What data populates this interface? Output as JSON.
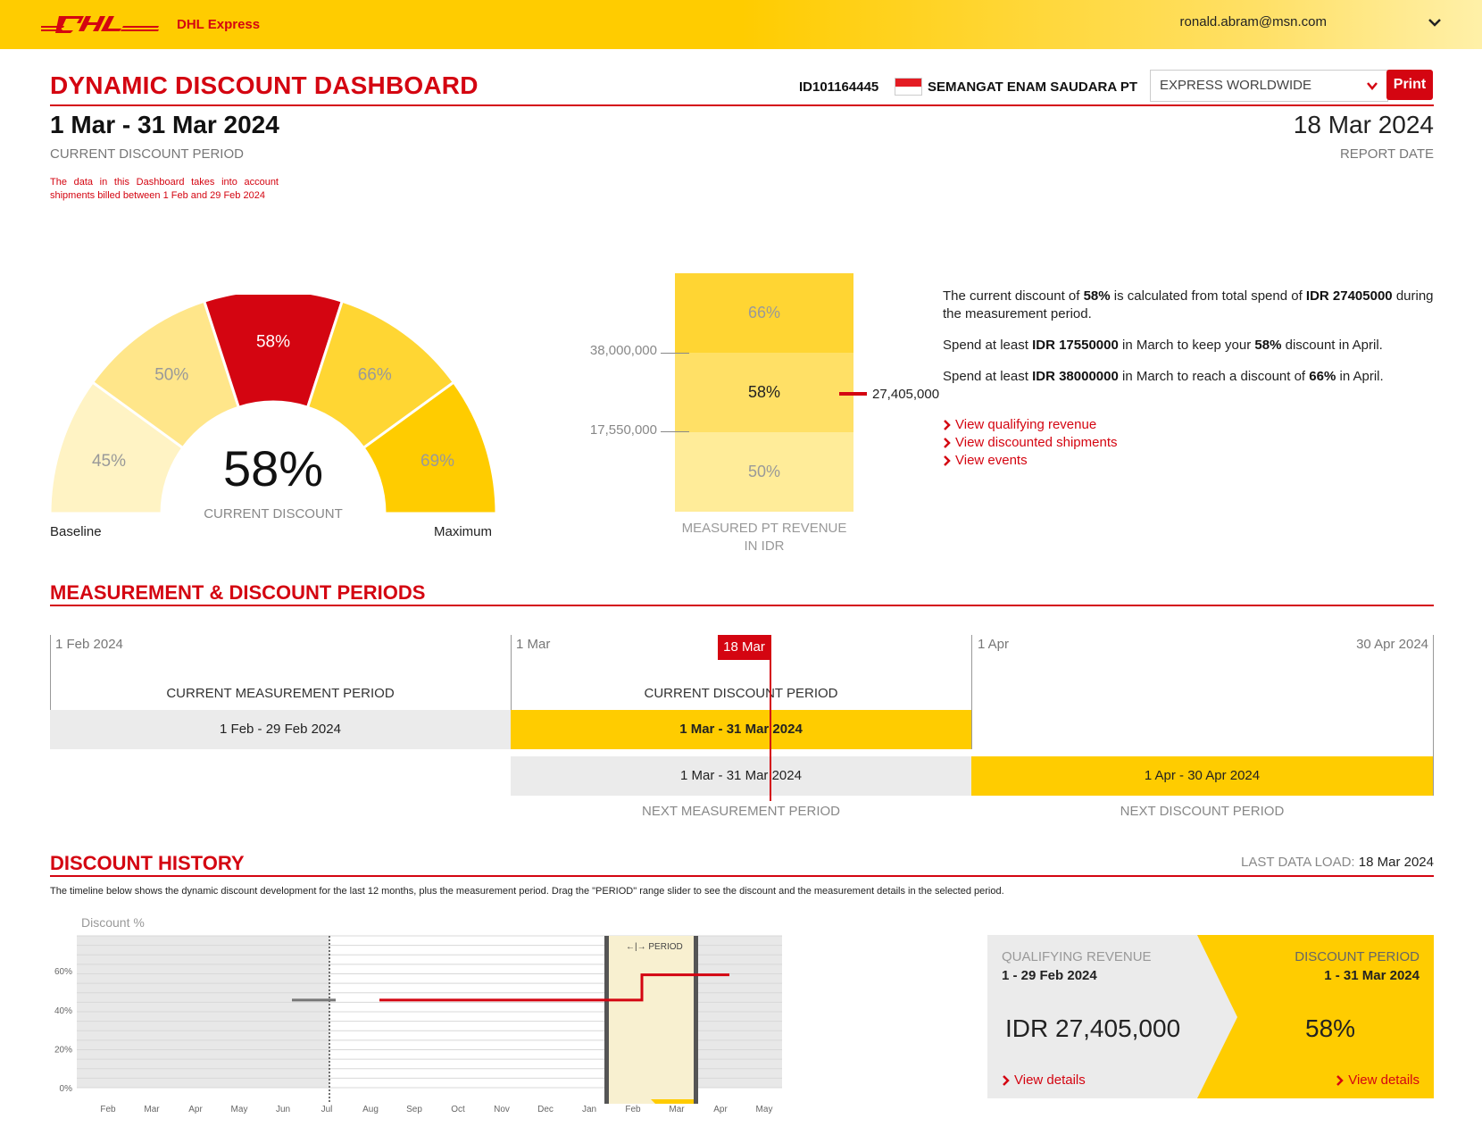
{
  "header": {
    "brand": "DHL Express",
    "user_email": "ronald.abram@msn.com"
  },
  "title": "DYNAMIC DISCOUNT DASHBOARD",
  "account": {
    "id": "ID101164445",
    "name": "SEMANGAT ENAM SAUDARA PT",
    "product": "EXPRESS WORLDWIDE",
    "print_label": "Print"
  },
  "period": {
    "range": "1 Mar - 31 Mar 2024",
    "caption": "CURRENT DISCOUNT PERIOD",
    "note": "The data in this Dashboard takes into account shipments billed between 1 Feb and 29 Feb 2024"
  },
  "report": {
    "date": "18 Mar 2024",
    "caption": "REPORT DATE"
  },
  "gauge": {
    "segments": [
      {
        "label": "45%",
        "color": "#FFF3C4"
      },
      {
        "label": "50%",
        "color": "#FFE68A"
      },
      {
        "label": "58%",
        "color": "#D40511"
      },
      {
        "label": "66%",
        "color": "#FFD633"
      },
      {
        "label": "69%",
        "color": "#FFCC00"
      }
    ],
    "value": "58%",
    "caption": "CURRENT DISCOUNT",
    "min_label": "Baseline",
    "max_label": "Maximum"
  },
  "tiers": {
    "levels": [
      "66%",
      "58%",
      "50%"
    ],
    "thresholds": [
      "38,000,000",
      "17,550,000"
    ],
    "marker_value": "27,405,000",
    "caption": "MEASURED PT REVENUE IN IDR"
  },
  "explain": {
    "line1_pre": "The current discount of ",
    "line1_b1": "58%",
    "line1_mid": " is calculated from total spend of ",
    "line1_b2": "IDR 27405000",
    "line1_post": " during the measurement period.",
    "line2_pre": "Spend at least ",
    "line2_b1": "IDR 17550000",
    "line2_mid": " in March to keep your ",
    "line2_b2": "58%",
    "line2_post": " discount in April.",
    "line3_pre": "Spend at least ",
    "line3_b1": "IDR 38000000",
    "line3_mid": " in March to reach a discount of ",
    "line3_b2": "66%",
    "line3_post": " in April."
  },
  "links": [
    "View qualifying revenue",
    "View discounted shipments",
    "View events"
  ],
  "periods_section": {
    "title": "MEASUREMENT & DISCOUNT PERIODS",
    "dates": [
      "1 Feb 2024",
      "1 Mar",
      "1 Apr",
      "30 Apr 2024"
    ],
    "today": "18 Mar",
    "current_measurement_label": "CURRENT MEASUREMENT PERIOD",
    "current_measurement_range": "1 Feb - 29 Feb 2024",
    "current_discount_label": "CURRENT DISCOUNT PERIOD",
    "current_discount_range": "1 Mar - 31 Mar 2024",
    "next_measurement_range": "1 Mar - 31 Mar 2024",
    "next_discount_range": "1 Apr - 30 Apr 2024",
    "next_measurement_label": "NEXT MEASUREMENT PERIOD",
    "next_discount_label": "NEXT DISCOUNT PERIOD"
  },
  "history_section": {
    "title": "DISCOUNT HISTORY",
    "last_load_label": "LAST DATA LOAD:",
    "last_load_value": "18 Mar 2024",
    "note": "The timeline below shows the dynamic discount development for the last 12 months, plus the measurement period. Drag the \"PERIOD\" range slider to see the discount and the measurement details in the selected period."
  },
  "chart_data": {
    "type": "line",
    "ylabel": "Discount %",
    "ylim": [
      0,
      75
    ],
    "yticks": [
      "0%",
      "20%",
      "40%",
      "60%"
    ],
    "ytick_values": [
      0,
      20,
      40,
      60
    ],
    "categories": [
      "Feb",
      "Mar",
      "Apr",
      "May",
      "Jun",
      "Jul",
      "Aug",
      "Sep",
      "Oct",
      "Nov",
      "Dec",
      "Jan",
      "Feb",
      "Mar",
      "Apr",
      "May"
    ],
    "series": [
      {
        "segment": "history_grey",
        "color": "#777777",
        "points": [
          [
            "Jun",
            45
          ],
          [
            "Jul",
            45
          ]
        ]
      },
      {
        "segment": "history_red",
        "color": "#D40511",
        "points": [
          [
            "Aug",
            45
          ],
          [
            "Feb",
            45
          ],
          [
            "Feb",
            58
          ],
          [
            "Apr",
            58
          ]
        ]
      }
    ],
    "slider_label": "PERIOD"
  },
  "summary": {
    "qualifying_label": "QUALIFYING REVENUE",
    "qualifying_range": "1 - 29 Feb 2024",
    "qualifying_value": "IDR 27,405,000",
    "discount_label": "DISCOUNT PERIOD",
    "discount_range": "1 - 31 Mar 2024",
    "discount_value": "58%",
    "details_link": "View details"
  }
}
